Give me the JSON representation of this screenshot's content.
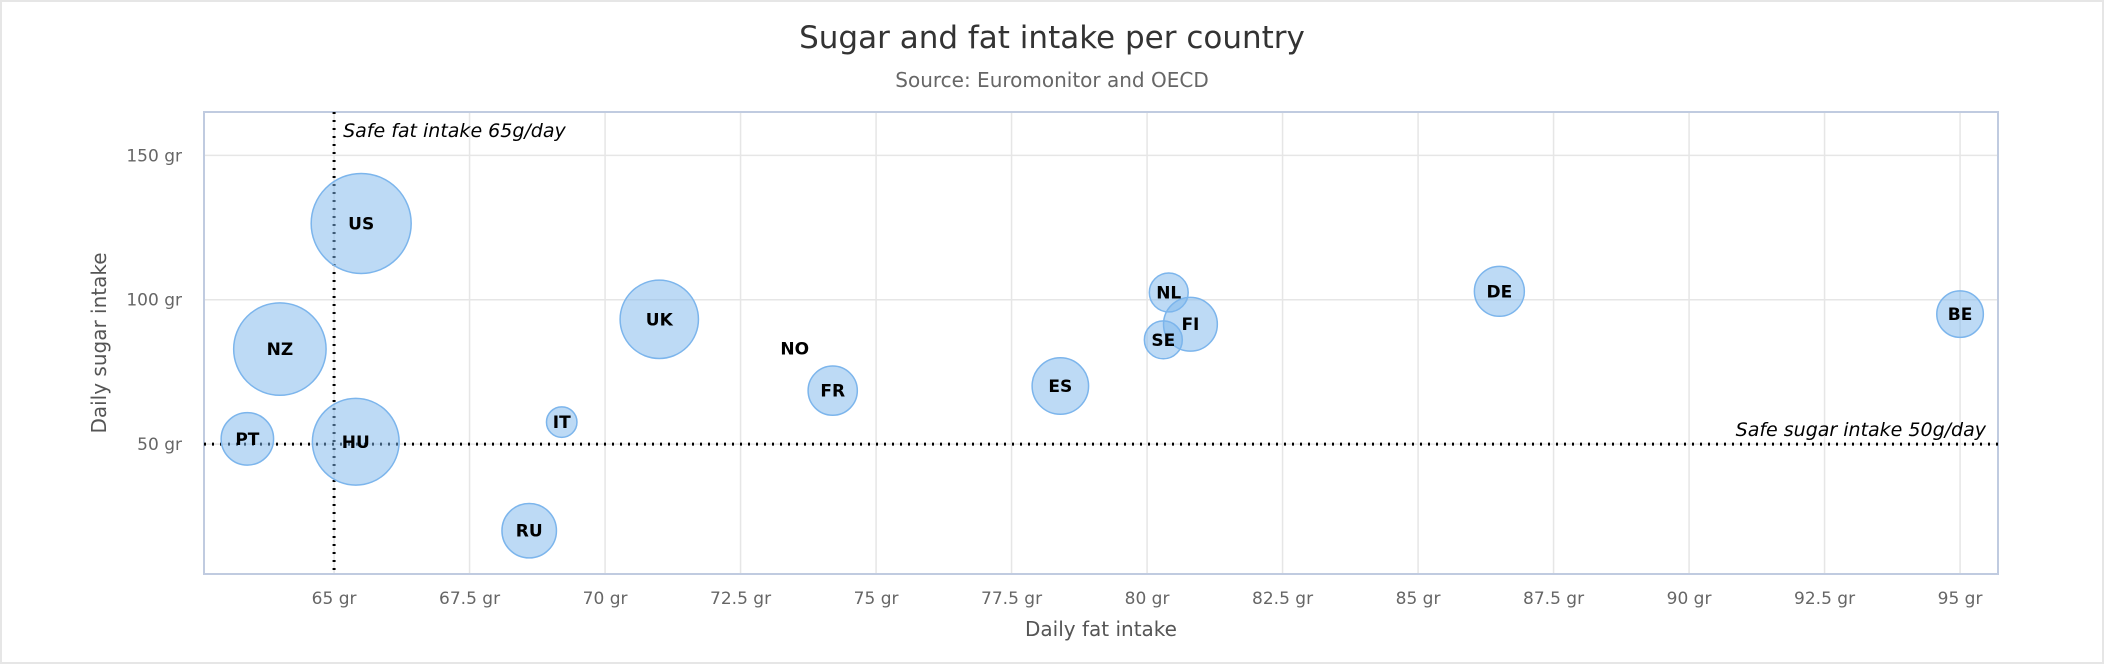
{
  "chart_data": {
    "type": "scatter",
    "subtype": "bubble",
    "title": "Sugar and fat intake per country",
    "subtitle": "Source: Euromonitor and OECD",
    "xlabel": "Daily fat intake",
    "ylabel": "Daily sugar intake",
    "xlim": [
      62.6,
      95.7
    ],
    "ylim": [
      5,
      165
    ],
    "xticks": [
      65,
      67.5,
      70,
      72.5,
      75,
      77.5,
      80,
      82.5,
      85,
      87.5,
      90,
      92.5,
      95
    ],
    "yticks": [
      50,
      100,
      150
    ],
    "tick_suffix": " gr",
    "grid": true,
    "legend": "none",
    "bubble_color": "#7cb5ec",
    "series": [
      {
        "points": [
          {
            "x": 95,
            "y": 95,
            "z": 13.8,
            "label": "BE"
          },
          {
            "x": 86.5,
            "y": 102.9,
            "z": 14.7,
            "label": "DE"
          },
          {
            "x": 80.8,
            "y": 91.5,
            "z": 15.8,
            "label": "FI"
          },
          {
            "x": 80.4,
            "y": 102.5,
            "z": 12,
            "label": "NL"
          },
          {
            "x": 80.3,
            "y": 86.1,
            "z": 11.8,
            "label": "SE"
          },
          {
            "x": 78.4,
            "y": 70.1,
            "z": 16.6,
            "label": "ES"
          },
          {
            "x": 74.2,
            "y": 68.5,
            "z": 14.5,
            "label": "FR"
          },
          {
            "x": 73.5,
            "y": 83.1,
            "z": 10,
            "label": "NO"
          },
          {
            "x": 71,
            "y": 93.2,
            "z": 24.7,
            "label": "UK"
          },
          {
            "x": 69.2,
            "y": 57.6,
            "z": 10.4,
            "label": "IT"
          },
          {
            "x": 68.6,
            "y": 20,
            "z": 16,
            "label": "RU"
          },
          {
            "x": 65.5,
            "y": 126.4,
            "z": 35.3,
            "label": "US"
          },
          {
            "x": 65.4,
            "y": 50.8,
            "z": 28.5,
            "label": "HU"
          },
          {
            "x": 63.4,
            "y": 51.8,
            "z": 15.4,
            "label": "PT"
          },
          {
            "x": 64,
            "y": 82.9,
            "z": 31.3,
            "label": "NZ"
          }
        ]
      }
    ],
    "plot_lines": [
      {
        "axis": "x",
        "value": 65,
        "label": "Safe fat intake 65g/day"
      },
      {
        "axis": "y",
        "value": 50,
        "label": "Safe sugar intake 50g/day"
      }
    ]
  }
}
